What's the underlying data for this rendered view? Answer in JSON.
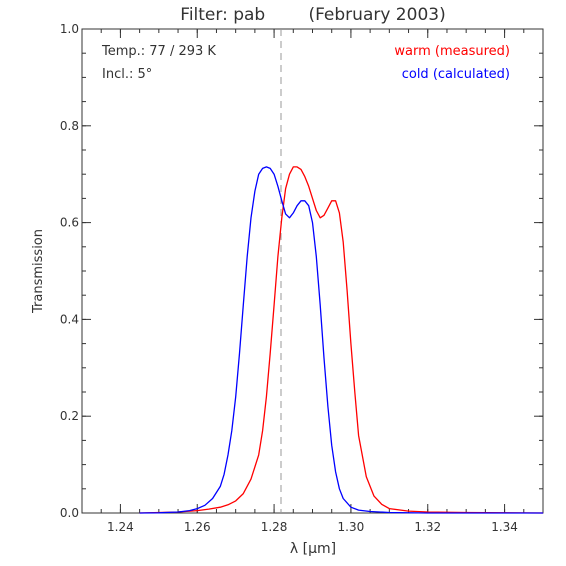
{
  "chart_data": {
    "type": "line",
    "title": "Filter: pab        (February 2003)",
    "xlabel": "λ [μm]",
    "ylabel": "Transmission",
    "xlim": [
      1.23,
      1.35
    ],
    "ylim": [
      0.0,
      1.0
    ],
    "xticks": [
      "1.24",
      "1.26",
      "1.28",
      "1.30",
      "1.32",
      "1.34"
    ],
    "yticks": [
      "0.0",
      "0.2",
      "0.4",
      "0.6",
      "0.8",
      "1.0"
    ],
    "annotations": {
      "temp": "Temp.: 77 / 293 K",
      "incl": "Incl.: 5°"
    },
    "marker_line_x": 1.2818,
    "colors": {
      "warm": "#ff0000",
      "cold": "#0000ff",
      "axis": "#333333",
      "marker": "#999999"
    },
    "series": [
      {
        "name": "warm (measured)",
        "color": "#ff0000",
        "x": [
          1.245,
          1.255,
          1.26,
          1.263,
          1.266,
          1.268,
          1.27,
          1.272,
          1.274,
          1.276,
          1.277,
          1.278,
          1.279,
          1.28,
          1.281,
          1.282,
          1.283,
          1.284,
          1.285,
          1.286,
          1.287,
          1.288,
          1.289,
          1.29,
          1.291,
          1.292,
          1.293,
          1.294,
          1.295,
          1.296,
          1.297,
          1.298,
          1.299,
          1.3,
          1.301,
          1.302,
          1.304,
          1.306,
          1.308,
          1.31,
          1.315,
          1.32,
          1.33,
          1.35
        ],
        "y": [
          0.0,
          0.002,
          0.005,
          0.008,
          0.012,
          0.017,
          0.025,
          0.04,
          0.07,
          0.12,
          0.17,
          0.24,
          0.33,
          0.43,
          0.53,
          0.61,
          0.67,
          0.7,
          0.715,
          0.715,
          0.71,
          0.695,
          0.675,
          0.65,
          0.625,
          0.61,
          0.615,
          0.63,
          0.645,
          0.645,
          0.62,
          0.56,
          0.46,
          0.35,
          0.25,
          0.16,
          0.075,
          0.035,
          0.018,
          0.009,
          0.004,
          0.002,
          0.001,
          0.0
        ]
      },
      {
        "name": "cold (calculated)",
        "color": "#0000ff",
        "x": [
          1.245,
          1.25,
          1.255,
          1.258,
          1.26,
          1.262,
          1.264,
          1.266,
          1.267,
          1.268,
          1.269,
          1.27,
          1.271,
          1.272,
          1.273,
          1.274,
          1.275,
          1.276,
          1.277,
          1.278,
          1.279,
          1.28,
          1.281,
          1.282,
          1.283,
          1.284,
          1.285,
          1.286,
          1.287,
          1.288,
          1.289,
          1.29,
          1.291,
          1.292,
          1.293,
          1.294,
          1.295,
          1.296,
          1.297,
          1.298,
          1.3,
          1.302,
          1.305,
          1.31,
          1.32,
          1.33,
          1.35
        ],
        "y": [
          0.0,
          0.0005,
          0.002,
          0.005,
          0.009,
          0.016,
          0.03,
          0.055,
          0.08,
          0.12,
          0.17,
          0.24,
          0.33,
          0.43,
          0.53,
          0.61,
          0.665,
          0.7,
          0.712,
          0.715,
          0.712,
          0.7,
          0.675,
          0.645,
          0.618,
          0.61,
          0.62,
          0.635,
          0.645,
          0.645,
          0.635,
          0.6,
          0.53,
          0.43,
          0.32,
          0.22,
          0.14,
          0.085,
          0.05,
          0.03,
          0.012,
          0.006,
          0.003,
          0.001,
          0.0,
          0.0,
          0.0
        ]
      }
    ]
  }
}
